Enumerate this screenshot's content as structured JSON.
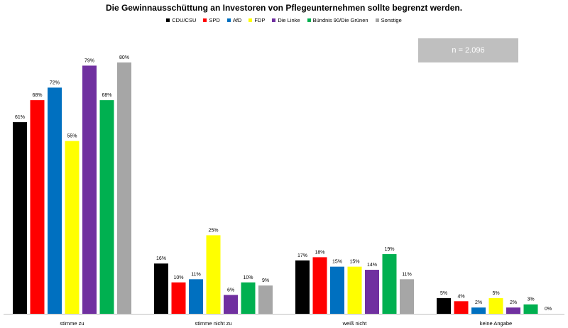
{
  "chart_data": {
    "type": "bar",
    "title": "Die Gewinnausschüttung an Investoren von Pflegeunternehmen sollte begrenzt werden.",
    "categories": [
      "stimme zu",
      "stimme nicht zu",
      "weiß nicht",
      "keine Angabe"
    ],
    "series": [
      {
        "name": "CDU/CSU",
        "color": "#000000",
        "values": [
          61,
          16,
          17,
          5
        ]
      },
      {
        "name": "SPD",
        "color": "#ff0000",
        "values": [
          68,
          10,
          18,
          4
        ]
      },
      {
        "name": "AfD",
        "color": "#0070c0",
        "values": [
          72,
          11,
          15,
          2
        ]
      },
      {
        "name": "FDP",
        "color": "#ffff00",
        "values": [
          55,
          25,
          15,
          5
        ]
      },
      {
        "name": "Die Linke",
        "color": "#7030a0",
        "values": [
          79,
          6,
          14,
          2
        ]
      },
      {
        "name": "Bündnis 90/Die Grünen",
        "color": "#00b050",
        "values": [
          68,
          10,
          19,
          3
        ]
      },
      {
        "name": "Sonstige",
        "color": "#a6a6a6",
        "values": [
          80,
          9,
          11,
          0
        ]
      }
    ],
    "value_suffix": "%",
    "ylim": [
      0,
      80
    ],
    "grid": false,
    "legend_position": "top-center",
    "annotation": "n = 2.096"
  }
}
